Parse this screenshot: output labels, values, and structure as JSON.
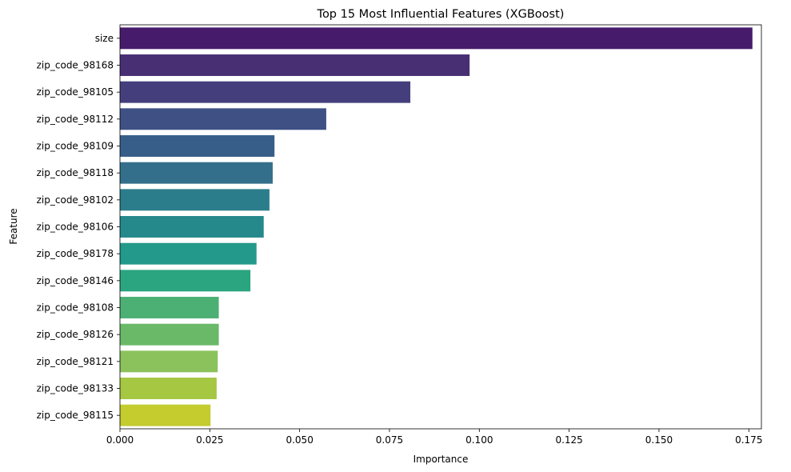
{
  "chart_data": {
    "type": "bar",
    "orientation": "horizontal",
    "title": "Top 15 Most Influential Features (XGBoost)",
    "xlabel": "Importance",
    "ylabel": "Feature",
    "xlim": [
      0,
      0.1785
    ],
    "xticks": [
      0.0,
      0.025,
      0.05,
      0.075,
      0.1,
      0.125,
      0.15,
      0.175
    ],
    "xtick_labels": [
      "0.000",
      "0.025",
      "0.050",
      "0.075",
      "0.100",
      "0.125",
      "0.150",
      "0.175"
    ],
    "grid": false,
    "palette": "viridis",
    "categories": [
      "size",
      "zip_code_98168",
      "zip_code_98105",
      "zip_code_98112",
      "zip_code_98109",
      "zip_code_98118",
      "zip_code_98102",
      "zip_code_98106",
      "zip_code_98178",
      "zip_code_98146",
      "zip_code_98108",
      "zip_code_98126",
      "zip_code_98121",
      "zip_code_98133",
      "zip_code_98115"
    ],
    "values": [
      0.176,
      0.0973,
      0.0808,
      0.0574,
      0.043,
      0.0425,
      0.0416,
      0.04,
      0.038,
      0.0363,
      0.0275,
      0.0275,
      0.0272,
      0.0269,
      0.0252
    ],
    "colors": [
      "#471b6b",
      "#482f74",
      "#443f7c",
      "#3e5084",
      "#375e88",
      "#336f8b",
      "#2c7d8c",
      "#25898c",
      "#22998b",
      "#2ba57f",
      "#4caf74",
      "#6ab969",
      "#8bc25c",
      "#a5c742",
      "#c4cc2e"
    ]
  }
}
